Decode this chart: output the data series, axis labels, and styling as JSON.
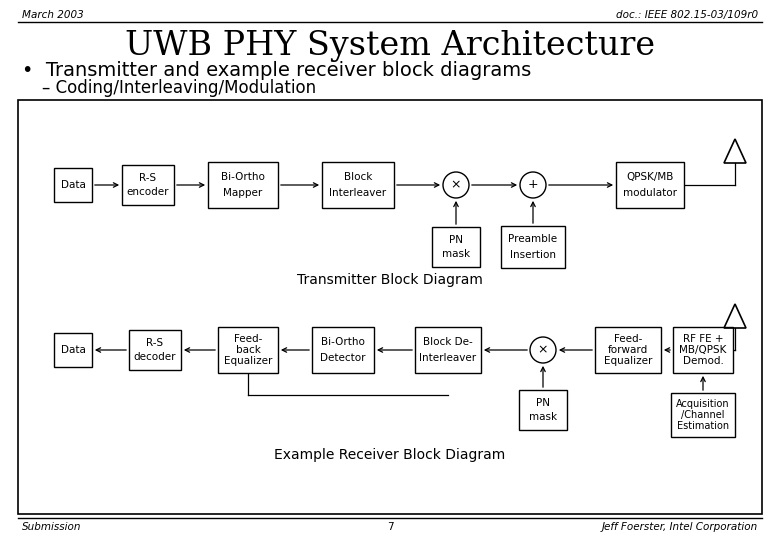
{
  "title": "UWB PHY System Architecture",
  "header_left": "March 2003",
  "header_right": "doc.: IEEE 802.15-03/109r0",
  "bullet": "•  Transmitter and example receiver block diagrams",
  "sub_bullet": "– Coding/Interleaving/Modulation",
  "footer_left": "Submission",
  "footer_center": "7",
  "footer_right": "Jeff Foerster, Intel Corporation",
  "tx_label": "Transmitter Block Diagram",
  "rx_label": "Example Receiver Block Diagram",
  "bg_color": "#ffffff"
}
